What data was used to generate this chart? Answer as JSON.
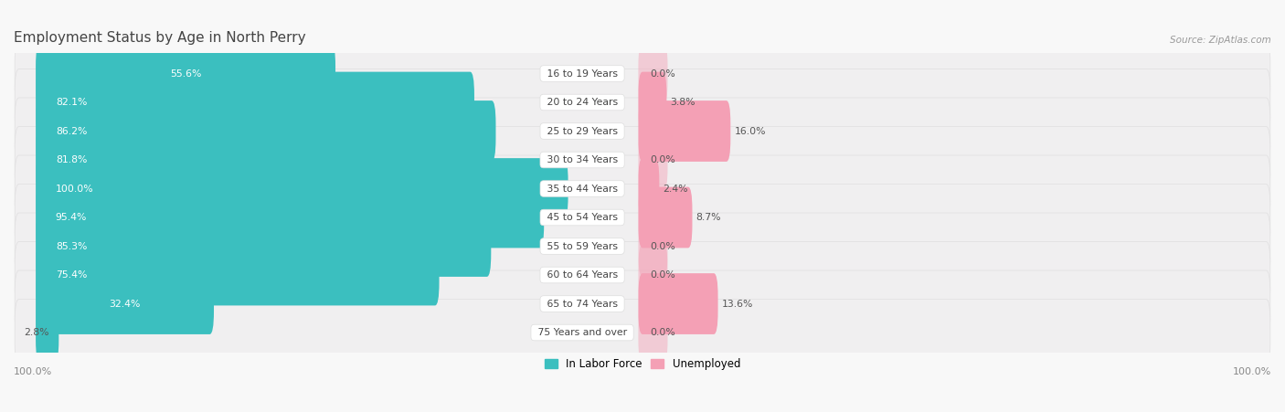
{
  "title": "Employment Status by Age in North Perry",
  "source": "Source: ZipAtlas.com",
  "categories": [
    "16 to 19 Years",
    "20 to 24 Years",
    "25 to 29 Years",
    "30 to 34 Years",
    "35 to 44 Years",
    "45 to 54 Years",
    "55 to 59 Years",
    "60 to 64 Years",
    "65 to 74 Years",
    "75 Years and over"
  ],
  "labor_force": [
    55.6,
    82.1,
    86.2,
    81.8,
    100.0,
    95.4,
    85.3,
    75.4,
    32.4,
    2.8
  ],
  "unemployed": [
    0.0,
    3.8,
    16.0,
    0.0,
    2.4,
    8.7,
    0.0,
    0.0,
    13.6,
    0.0
  ],
  "labor_color": "#3BBFBF",
  "unemployed_color": "#F4A0B5",
  "row_bg_color": "#F0EFF0",
  "fig_bg_color": "#F8F8F8",
  "title_color": "#444444",
  "source_color": "#999999",
  "legend_labor": "In Labor Force",
  "legend_unemployed": "Unemployed",
  "left_axis_label": "100.0%",
  "right_axis_label": "100.0%",
  "lf_label_dark": "#555555",
  "lf_label_white": "#FFFFFF",
  "cat_label_color": "#444444"
}
